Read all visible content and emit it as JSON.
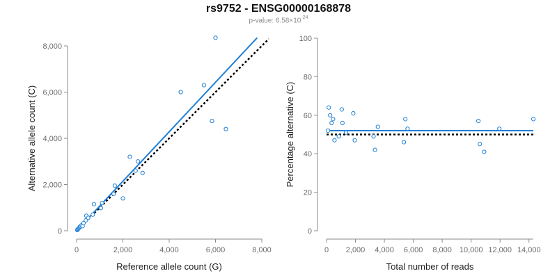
{
  "title": "rs9752 - ENSG00000168878",
  "subtitle": {
    "prefix": "p-value: 6.58×10",
    "exponent": "-24"
  },
  "colors": {
    "accent": "#1f7fd4",
    "point_stroke": "#1f7fd4",
    "reference": "#000000",
    "axis": "#8a8a8a"
  },
  "chart_data": [
    {
      "type": "scatter",
      "name": "count",
      "xlabel": "Reference allele count (G)",
      "ylabel": "Alternative allele count (C)",
      "xlim": [
        0,
        8000
      ],
      "ylim": [
        0,
        8000
      ],
      "xticks": [
        0,
        2000,
        4000,
        6000,
        8000
      ],
      "xtick_labels": [
        "0",
        "2,000",
        "4,000",
        "6,000",
        "8,000"
      ],
      "yticks": [
        0,
        2000,
        4000,
        6000,
        8000
      ],
      "ytick_labels": [
        "0",
        "2,000",
        "4,000",
        "6,000",
        "8,000"
      ],
      "points": [
        {
          "x": 30,
          "y": 30
        },
        {
          "x": 50,
          "y": 60
        },
        {
          "x": 80,
          "y": 90
        },
        {
          "x": 100,
          "y": 120
        },
        {
          "x": 130,
          "y": 140
        },
        {
          "x": 150,
          "y": 180
        },
        {
          "x": 180,
          "y": 200
        },
        {
          "x": 220,
          "y": 240
        },
        {
          "x": 260,
          "y": 200
        },
        {
          "x": 300,
          "y": 330
        },
        {
          "x": 400,
          "y": 450
        },
        {
          "x": 420,
          "y": 650
        },
        {
          "x": 500,
          "y": 560
        },
        {
          "x": 700,
          "y": 700
        },
        {
          "x": 750,
          "y": 1150
        },
        {
          "x": 1050,
          "y": 980
        },
        {
          "x": 1100,
          "y": 1200
        },
        {
          "x": 1600,
          "y": 1600
        },
        {
          "x": 1650,
          "y": 1950
        },
        {
          "x": 2000,
          "y": 1400
        },
        {
          "x": 2300,
          "y": 3200
        },
        {
          "x": 2550,
          "y": 2600
        },
        {
          "x": 2650,
          "y": 3000
        },
        {
          "x": 2850,
          "y": 2500
        },
        {
          "x": 4500,
          "y": 6000
        },
        {
          "x": 5500,
          "y": 6300
        },
        {
          "x": 5850,
          "y": 4750
        },
        {
          "x": 6000,
          "y": 8350
        },
        {
          "x": 6450,
          "y": 4400
        }
      ],
      "fit_line": {
        "x": [
          0,
          7800
        ],
        "y": [
          0,
          8350
        ]
      },
      "reference_line": {
        "x": [
          0,
          8300
        ],
        "y": [
          0,
          8300
        ]
      }
    },
    {
      "type": "scatter",
      "name": "percentage",
      "xlabel": "Total number of reads",
      "ylabel": "Percentage alternative (C)",
      "xlim": [
        0,
        14300
      ],
      "ylim": [
        0,
        100
      ],
      "xticks": [
        0,
        2000,
        4000,
        6000,
        8000,
        10000,
        12000,
        14000
      ],
      "xtick_labels": [
        "0",
        "2,000",
        "4,000",
        "6,000",
        "8,000",
        "10,000",
        "12,000",
        "14,000"
      ],
      "yticks": [
        0,
        20,
        40,
        60,
        80,
        100
      ],
      "ytick_labels": [
        "0",
        "20",
        "40",
        "60",
        "80",
        "100"
      ],
      "points": [
        {
          "x": 100,
          "y": 52
        },
        {
          "x": 150,
          "y": 64
        },
        {
          "x": 250,
          "y": 60
        },
        {
          "x": 350,
          "y": 56
        },
        {
          "x": 450,
          "y": 58
        },
        {
          "x": 550,
          "y": 47
        },
        {
          "x": 850,
          "y": 49
        },
        {
          "x": 1050,
          "y": 63
        },
        {
          "x": 1100,
          "y": 56
        },
        {
          "x": 1350,
          "y": 51
        },
        {
          "x": 1850,
          "y": 61
        },
        {
          "x": 1950,
          "y": 47
        },
        {
          "x": 3250,
          "y": 49
        },
        {
          "x": 3350,
          "y": 42
        },
        {
          "x": 3550,
          "y": 54
        },
        {
          "x": 5350,
          "y": 46
        },
        {
          "x": 5450,
          "y": 58
        },
        {
          "x": 5600,
          "y": 53
        },
        {
          "x": 10500,
          "y": 57
        },
        {
          "x": 10600,
          "y": 45
        },
        {
          "x": 10900,
          "y": 41
        },
        {
          "x": 11950,
          "y": 53
        },
        {
          "x": 14300,
          "y": 58
        }
      ],
      "fit_line": {
        "x": [
          0,
          14300
        ],
        "y": [
          52,
          52
        ]
      },
      "reference_line": {
        "x": [
          0,
          14300
        ],
        "y": [
          50,
          50
        ]
      }
    }
  ]
}
